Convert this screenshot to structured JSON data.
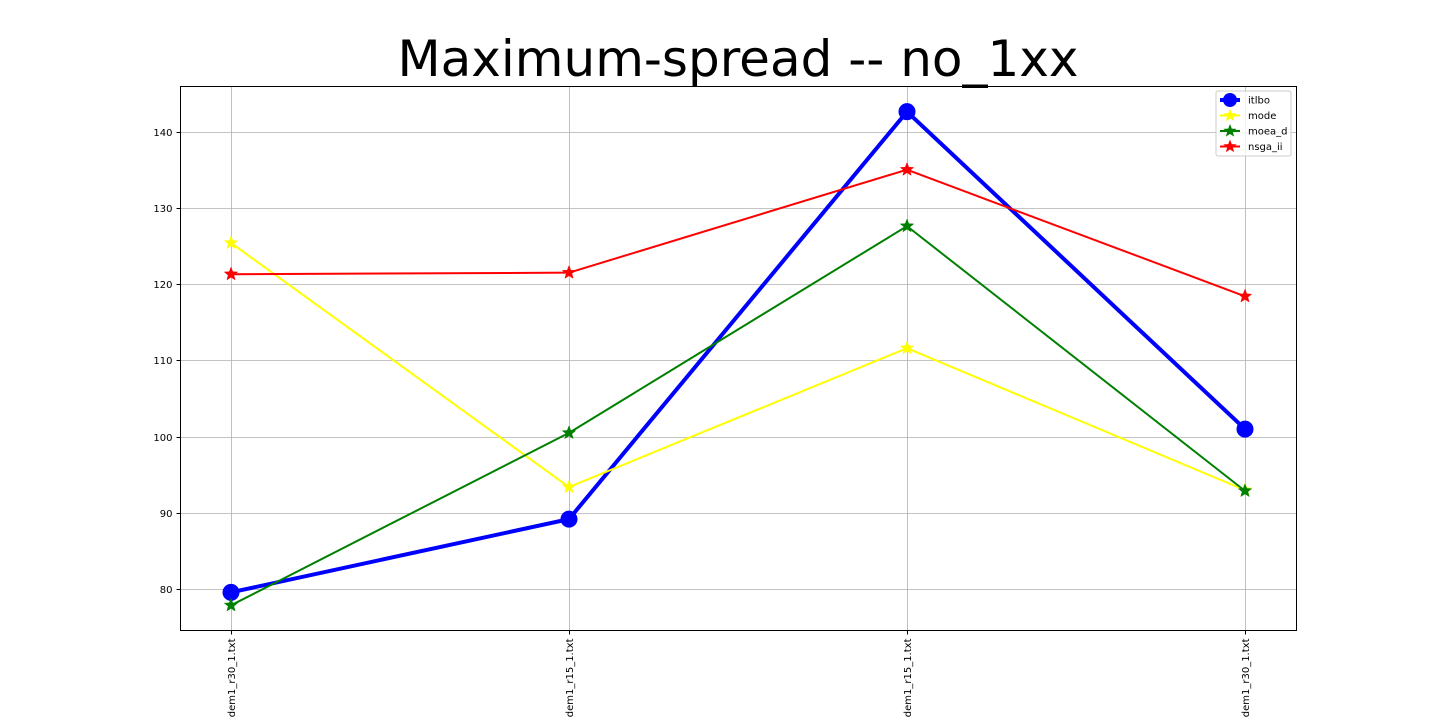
{
  "chart_data": {
    "type": "line",
    "title": "Maximum-spread -- no_1xx",
    "xlabel": "",
    "ylabel": "",
    "categories": [
      "dem1_r30_1.txt",
      "dem1_r15_1.txt",
      "dem1_r15_1.txt",
      "dem1_r30_1.txt"
    ],
    "ylim": [
      74.6,
      145.9
    ],
    "yticks": [
      80,
      90,
      100,
      110,
      120,
      130,
      140
    ],
    "grid": true,
    "legend_position": "top-right",
    "series": [
      {
        "name": "itlbo",
        "color": "#0000ff",
        "marker": "circle",
        "values": [
          79.6,
          89.2,
          142.6,
          101.0
        ]
      },
      {
        "name": "mode",
        "color": "#ffff00",
        "marker": "star",
        "values": [
          125.4,
          93.4,
          111.6,
          93.0
        ]
      },
      {
        "name": "moea_d",
        "color": "#008000",
        "marker": "star",
        "values": [
          77.9,
          100.5,
          127.6,
          92.9
        ]
      },
      {
        "name": "nsga_ii",
        "color": "#ff0000",
        "marker": "star",
        "values": [
          121.3,
          121.5,
          135.0,
          118.4
        ]
      }
    ]
  }
}
